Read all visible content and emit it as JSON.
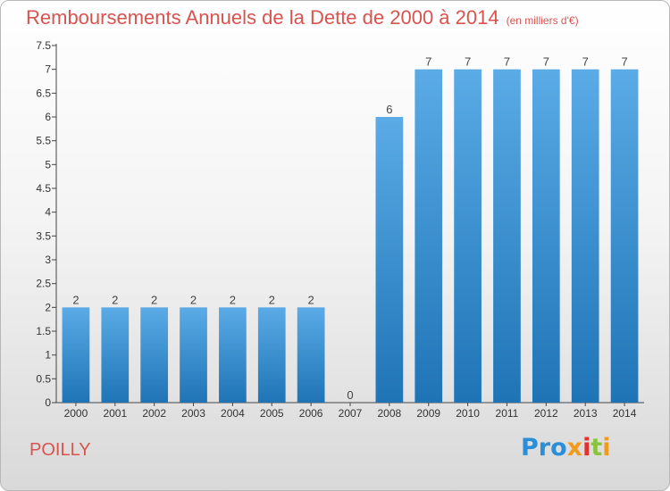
{
  "title": "Remboursements Annuels de la Dette de 2000 à 2014",
  "unit": "(en milliers d'€)",
  "commune": "POILLY",
  "logo": {
    "text": "Proxiti",
    "colors": [
      "#2a8fd8",
      "#8ac43f",
      "#f29a1d",
      "#e3312d"
    ]
  },
  "colors": {
    "bar": "#3a95dc",
    "bar_light": "#5aabe6",
    "bar_dark": "#1f74b6",
    "title": "#d9534f"
  },
  "chart_data": {
    "type": "bar",
    "categories": [
      "2000",
      "2001",
      "2002",
      "2003",
      "2004",
      "2005",
      "2006",
      "2007",
      "2008",
      "2009",
      "2010",
      "2011",
      "2012",
      "2013",
      "2014"
    ],
    "values": [
      2,
      2,
      2,
      2,
      2,
      2,
      2,
      0,
      6,
      7,
      7,
      7,
      7,
      7,
      7
    ],
    "data_labels": [
      "2",
      "2",
      "2",
      "2",
      "2",
      "2",
      "2",
      "0",
      "6",
      "7",
      "7",
      "7",
      "7",
      "7",
      "7"
    ],
    "yticks": [
      0,
      0.5,
      1,
      1.5,
      2,
      2.5,
      3,
      3.5,
      4,
      4.5,
      5,
      5.5,
      6,
      6.5,
      7,
      7.5
    ],
    "ytick_labels": [
      "0",
      "0.5",
      "1",
      "1.5",
      "2",
      "2.5",
      "3",
      "3.5",
      "4",
      "4.5",
      "5",
      "5.5",
      "6",
      "6.5",
      "7",
      "7.5"
    ],
    "ylim": [
      0,
      7.5
    ],
    "grid": false,
    "legend": "none"
  }
}
